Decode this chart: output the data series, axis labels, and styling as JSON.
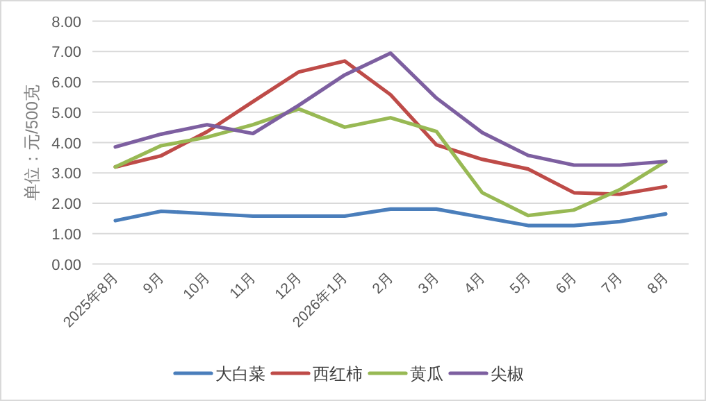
{
  "chart_data": {
    "type": "line",
    "ylabel": "单位：元/500克",
    "categories": [
      "2025年8月",
      "9月",
      "10月",
      "11月",
      "12月",
      "2026年1月",
      "2月",
      "3月",
      "4月",
      "5月",
      "6月",
      "7月",
      "8月"
    ],
    "series": [
      {
        "name": "大白菜",
        "color": "#4a7ebb",
        "values": [
          1.43,
          1.74,
          1.66,
          1.58,
          1.58,
          1.58,
          1.81,
          1.81,
          1.54,
          1.27,
          1.27,
          1.4,
          1.65
        ]
      },
      {
        "name": "西红柿",
        "color": "#be4b48",
        "values": [
          3.2,
          3.57,
          4.36,
          5.35,
          6.33,
          6.69,
          5.58,
          3.93,
          3.45,
          3.13,
          2.35,
          2.3,
          2.55
        ]
      },
      {
        "name": "黄瓜",
        "color": "#98b954",
        "values": [
          3.2,
          3.9,
          4.18,
          4.59,
          5.11,
          4.51,
          4.82,
          4.37,
          2.35,
          1.6,
          1.78,
          2.45,
          3.38
        ]
      },
      {
        "name": "尖椒",
        "color": "#7d5fa0",
        "values": [
          3.86,
          4.28,
          4.59,
          4.3,
          5.23,
          6.23,
          6.95,
          5.47,
          4.33,
          3.58,
          3.26,
          3.26,
          3.38
        ]
      }
    ],
    "ylim": [
      0,
      8
    ],
    "yticks": [
      {
        "value": 0,
        "label": "0.00"
      },
      {
        "value": 1,
        "label": "1.00"
      },
      {
        "value": 2,
        "label": "2.00"
      },
      {
        "value": 3,
        "label": "3.00"
      },
      {
        "value": 4,
        "label": "4.00"
      },
      {
        "value": 5,
        "label": "5.00"
      },
      {
        "value": 6,
        "label": "6.00"
      },
      {
        "value": 7,
        "label": "7.00"
      },
      {
        "value": 8,
        "label": "8.00"
      }
    ],
    "grid": "y",
    "legend": "bottom",
    "marker": "none"
  }
}
